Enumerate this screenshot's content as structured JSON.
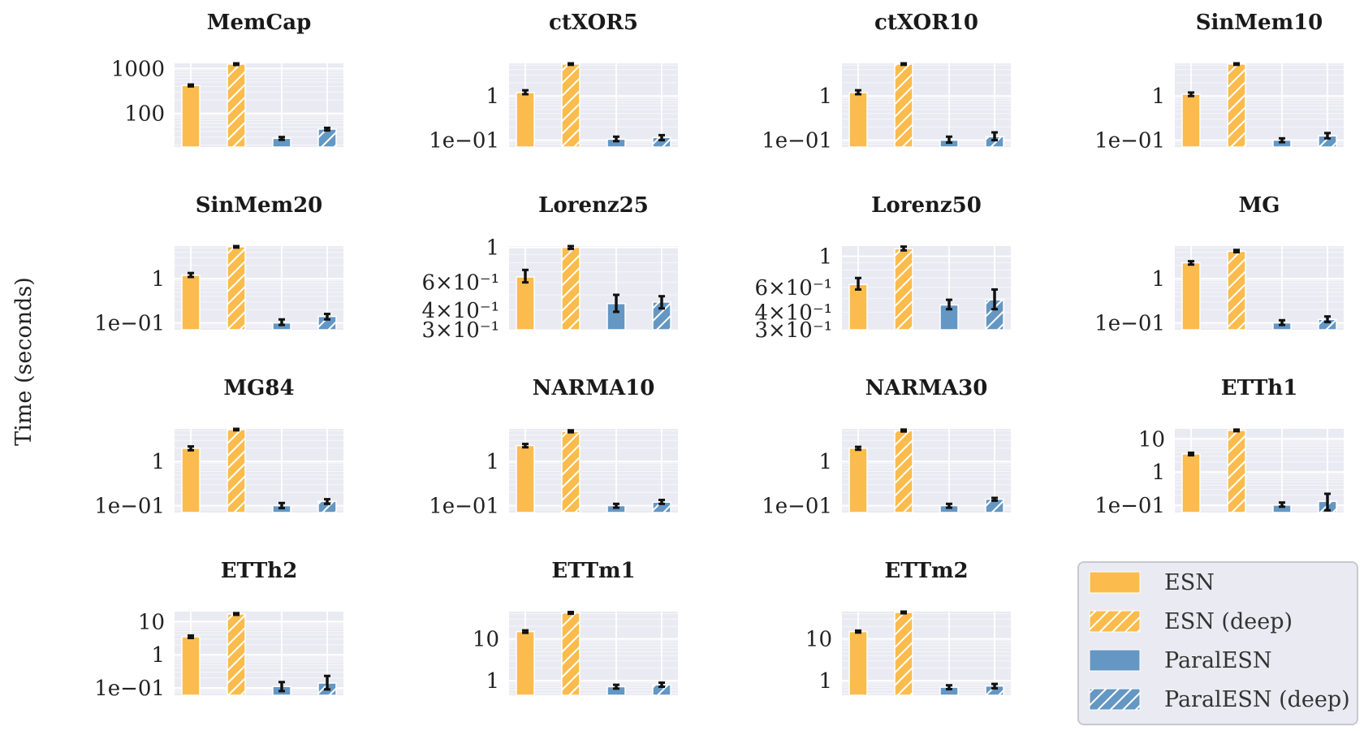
{
  "figure": {
    "ylabel": "Time (seconds)"
  },
  "colors": {
    "ESN": "#fbbc4d",
    "ParalESN": "#6497c3",
    "panel_bg": "#eaeaf2",
    "grid": "#ffffff",
    "errorbar": "#111111"
  },
  "legend": {
    "entries": [
      {
        "label": "ESN",
        "color": "#fbbc4d",
        "hatch": false
      },
      {
        "label": "ESN (deep)",
        "color": "#fbbc4d",
        "hatch": true
      },
      {
        "label": "ParalESN",
        "color": "#6497c3",
        "hatch": false
      },
      {
        "label": "ParalESN (deep)",
        "color": "#6497c3",
        "hatch": true
      }
    ],
    "placement": "bottom-right"
  },
  "chart_data": [
    {
      "type": "bar",
      "title": "MemCap",
      "yscale": "log",
      "ylim": [
        18,
        1300
      ],
      "yticks": [
        {
          "v": 100,
          "label": "100"
        },
        {
          "v": 1000,
          "label": "1000"
        }
      ],
      "categories": [
        "ESN",
        "ESN (deep)",
        "ParalESN",
        "ParalESN (deep)"
      ],
      "values": [
        420,
        1250,
        28,
        45
      ],
      "errors": [
        [
          400,
          440
        ],
        [
          1200,
          1300
        ],
        [
          26,
          30
        ],
        [
          42,
          48
        ]
      ]
    },
    {
      "type": "bar",
      "title": "ctXOR5",
      "yscale": "log",
      "ylim": [
        0.07,
        5.5
      ],
      "yticks": [
        {
          "v": 0.1,
          "label": "1e−01"
        },
        {
          "v": 1,
          "label": "1"
        }
      ],
      "categories": [
        "ESN",
        "ESN (deep)",
        "ParalESN",
        "ParalESN (deep)"
      ],
      "values": [
        1.2,
        5.3,
        0.105,
        0.115
      ],
      "errors": [
        [
          1.1,
          1.35
        ],
        [
          5.1,
          5.5
        ],
        [
          0.095,
          0.12
        ],
        [
          0.1,
          0.13
        ]
      ]
    },
    {
      "type": "bar",
      "title": "ctXOR10",
      "yscale": "log",
      "ylim": [
        0.07,
        5.5
      ],
      "yticks": [
        {
          "v": 0.1,
          "label": "1e−01"
        },
        {
          "v": 1,
          "label": "1"
        }
      ],
      "categories": [
        "ESN",
        "ESN (deep)",
        "ParalESN",
        "ParalESN (deep)"
      ],
      "values": [
        1.2,
        5.3,
        0.1,
        0.12
      ],
      "errors": [
        [
          1.1,
          1.35
        ],
        [
          5.1,
          5.5
        ],
        [
          0.088,
          0.12
        ],
        [
          0.1,
          0.15
        ]
      ]
    },
    {
      "type": "bar",
      "title": "SinMem10",
      "yscale": "log",
      "ylim": [
        0.07,
        5.5
      ],
      "yticks": [
        {
          "v": 0.1,
          "label": "1e−01"
        },
        {
          "v": 1,
          "label": "1"
        }
      ],
      "categories": [
        "ESN",
        "ESN (deep)",
        "ParalESN",
        "ParalESN (deep)"
      ],
      "values": [
        1.1,
        5.3,
        0.1,
        0.125
      ],
      "errors": [
        [
          1.0,
          1.2
        ],
        [
          5.1,
          5.5
        ],
        [
          0.09,
          0.11
        ],
        [
          0.11,
          0.145
        ]
      ]
    },
    {
      "type": "bar",
      "title": "SinMem20",
      "yscale": "log",
      "ylim": [
        0.07,
        5.5
      ],
      "yticks": [
        {
          "v": 0.1,
          "label": "1e−01"
        },
        {
          "v": 1,
          "label": "1"
        }
      ],
      "categories": [
        "ESN",
        "ESN (deep)",
        "ParalESN",
        "ParalESN (deep)"
      ],
      "values": [
        1.2,
        5.3,
        0.1,
        0.14
      ],
      "errors": [
        [
          1.1,
          1.35
        ],
        [
          5.1,
          5.5
        ],
        [
          0.09,
          0.12
        ],
        [
          0.12,
          0.16
        ]
      ]
    },
    {
      "type": "bar",
      "title": "Lorenz25",
      "yscale": "log",
      "ylim": [
        0.3,
        1.02
      ],
      "yticks": [
        {
          "v": 0.3,
          "label": "3×10⁻¹"
        },
        {
          "v": 0.4,
          "label": "4×10⁻¹"
        },
        {
          "v": 0.6,
          "label": "6×10⁻¹"
        },
        {
          "v": 1,
          "label": "1"
        }
      ],
      "categories": [
        "ESN",
        "ESN (deep)",
        "ParalESN",
        "ParalESN (deep)"
      ],
      "values": [
        0.65,
        1.0,
        0.44,
        0.45
      ],
      "errors": [
        [
          0.6,
          0.72
        ],
        [
          0.98,
          1.02
        ],
        [
          0.39,
          0.5
        ],
        [
          0.41,
          0.49
        ]
      ]
    },
    {
      "type": "bar",
      "title": "Lorenz50",
      "yscale": "log",
      "ylim": [
        0.3,
        1.18
      ],
      "yticks": [
        {
          "v": 0.3,
          "label": "3×10⁻¹"
        },
        {
          "v": 0.4,
          "label": "4×10⁻¹"
        },
        {
          "v": 0.6,
          "label": "6×10⁻¹"
        },
        {
          "v": 1,
          "label": "1"
        }
      ],
      "categories": [
        "ESN",
        "ESN (deep)",
        "ParalESN",
        "ParalESN (deep)"
      ],
      "values": [
        0.63,
        1.13,
        0.45,
        0.49
      ],
      "errors": [
        [
          0.58,
          0.7
        ],
        [
          1.1,
          1.17
        ],
        [
          0.42,
          0.49
        ],
        [
          0.42,
          0.58
        ]
      ]
    },
    {
      "type": "bar",
      "title": "MG",
      "yscale": "log",
      "ylim": [
        0.07,
        5.5
      ],
      "yticks": [
        {
          "v": 0.1,
          "label": "1e−01"
        },
        {
          "v": 1,
          "label": "1"
        }
      ],
      "categories": [
        "ESN",
        "ESN (deep)",
        "ParalESN",
        "ParalESN (deep)"
      ],
      "values": [
        2.3,
        4.2,
        0.1,
        0.12
      ],
      "errors": [
        [
          2.1,
          2.5
        ],
        [
          4.0,
          4.5
        ],
        [
          0.09,
          0.115
        ],
        [
          0.105,
          0.14
        ]
      ]
    },
    {
      "type": "bar",
      "title": "MG84",
      "yscale": "log",
      "ylim": [
        0.07,
        5.5
      ],
      "yticks": [
        {
          "v": 0.1,
          "label": "1e−01"
        },
        {
          "v": 1,
          "label": "1"
        }
      ],
      "categories": [
        "ESN",
        "ESN (deep)",
        "ParalESN",
        "ParalESN (deep)"
      ],
      "values": [
        2.0,
        5.3,
        0.1,
        0.125
      ],
      "errors": [
        [
          1.8,
          2.2
        ],
        [
          5.1,
          5.5
        ],
        [
          0.088,
          0.115
        ],
        [
          0.11,
          0.14
        ]
      ]
    },
    {
      "type": "bar",
      "title": "NARMA10",
      "yscale": "log",
      "ylim": [
        0.07,
        5.5
      ],
      "yticks": [
        {
          "v": 0.1,
          "label": "1e−01"
        },
        {
          "v": 1,
          "label": "1"
        }
      ],
      "categories": [
        "ESN",
        "ESN (deep)",
        "ParalESN",
        "ParalESN (deep)"
      ],
      "values": [
        2.3,
        4.8,
        0.1,
        0.12
      ],
      "errors": [
        [
          2.1,
          2.5
        ],
        [
          4.6,
          5.1
        ],
        [
          0.09,
          0.11
        ],
        [
          0.11,
          0.135
        ]
      ]
    },
    {
      "type": "bar",
      "title": "NARMA30",
      "yscale": "log",
      "ylim": [
        0.07,
        5.5
      ],
      "yticks": [
        {
          "v": 0.1,
          "label": "1e−01"
        },
        {
          "v": 1,
          "label": "1"
        }
      ],
      "categories": [
        "ESN",
        "ESN (deep)",
        "ParalESN",
        "ParalESN (deep)"
      ],
      "values": [
        2.0,
        5.0,
        0.1,
        0.14
      ],
      "errors": [
        [
          1.85,
          2.15
        ],
        [
          4.8,
          5.3
        ],
        [
          0.09,
          0.11
        ],
        [
          0.13,
          0.15
        ]
      ]
    },
    {
      "type": "bar",
      "title": "ETTh1",
      "yscale": "log",
      "ylim": [
        0.06,
        20
      ],
      "yticks": [
        {
          "v": 0.1,
          "label": "1e−01"
        },
        {
          "v": 1,
          "label": "1"
        },
        {
          "v": 10,
          "label": "10"
        }
      ],
      "categories": [
        "ESN",
        "ESN (deep)",
        "ParalESN",
        "ParalESN (deep)"
      ],
      "values": [
        3.5,
        18,
        0.1,
        0.13
      ],
      "errors": [
        [
          3.2,
          3.8
        ],
        [
          17,
          19
        ],
        [
          0.09,
          0.12
        ],
        [
          0.07,
          0.22
        ]
      ]
    },
    {
      "type": "bar",
      "title": "ETTh2",
      "yscale": "log",
      "ylim": [
        0.06,
        20
      ],
      "yticks": [
        {
          "v": 0.1,
          "label": "1e−01"
        },
        {
          "v": 1,
          "label": "1"
        },
        {
          "v": 10,
          "label": "10"
        }
      ],
      "categories": [
        "ESN",
        "ESN (deep)",
        "ParalESN",
        "ParalESN (deep)"
      ],
      "values": [
        3.5,
        17,
        0.11,
        0.14
      ],
      "errors": [
        [
          3.2,
          3.8
        ],
        [
          16,
          18
        ],
        [
          0.08,
          0.15
        ],
        [
          0.09,
          0.23
        ]
      ]
    },
    {
      "type": "bar",
      "title": "ETTm1",
      "yscale": "log",
      "ylim": [
        0.45,
        45
      ],
      "yticks": [
        {
          "v": 1,
          "label": "1"
        },
        {
          "v": 10,
          "label": "10"
        }
      ],
      "categories": [
        "ESN",
        "ESN (deep)",
        "ParalESN",
        "ParalESN (deep)"
      ],
      "values": [
        15,
        42,
        0.72,
        0.8
      ],
      "errors": [
        [
          14,
          16
        ],
        [
          40,
          44
        ],
        [
          0.65,
          0.8
        ],
        [
          0.72,
          0.9
        ]
      ]
    },
    {
      "type": "bar",
      "title": "ETTm2",
      "yscale": "log",
      "ylim": [
        0.45,
        45
      ],
      "yticks": [
        {
          "v": 1,
          "label": "1"
        },
        {
          "v": 10,
          "label": "10"
        }
      ],
      "categories": [
        "ESN",
        "ESN (deep)",
        "ParalESN",
        "ParalESN (deep)"
      ],
      "values": [
        15,
        43,
        0.7,
        0.75
      ],
      "errors": [
        [
          14.2,
          15.8
        ],
        [
          41,
          45
        ],
        [
          0.63,
          0.78
        ],
        [
          0.66,
          0.84
        ]
      ]
    }
  ]
}
